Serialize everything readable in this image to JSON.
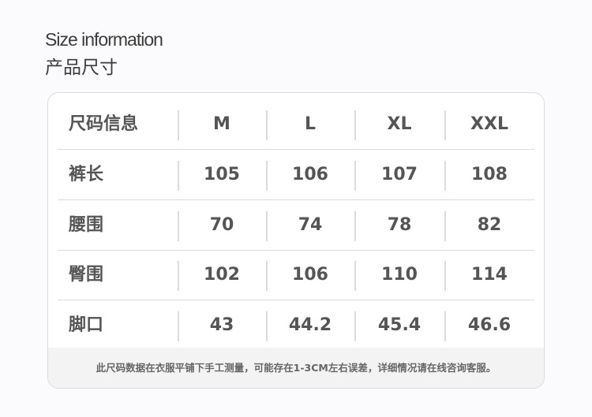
{
  "heading": {
    "title_en": "Size information",
    "title_cn": "产品尺寸"
  },
  "table": {
    "headers": [
      "尺码信息",
      "M",
      "L",
      "XL",
      "XXL"
    ],
    "rows": [
      [
        "裤长",
        "105",
        "106",
        "107",
        "108"
      ],
      [
        "腰围",
        "70",
        "74",
        "78",
        "82"
      ],
      [
        "臀围",
        "102",
        "106",
        "110",
        "114"
      ],
      [
        "脚口",
        "43",
        "44.2",
        "45.4",
        "46.6"
      ]
    ]
  },
  "footer": {
    "note": "此尺码数据在衣服平铺下手工测量，可能存在1-3CM左右误差，详细情况请在线咨询客服。"
  }
}
